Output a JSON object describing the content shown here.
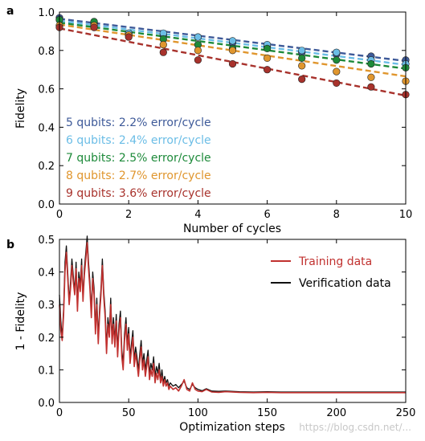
{
  "chart_data": [
    {
      "type": "scatter",
      "panel_label": "a",
      "xlabel": "Number of cycles",
      "ylabel": "Fidelity",
      "xlim": [
        0,
        10
      ],
      "ylim": [
        0,
        1.0
      ],
      "xticks": [
        0,
        2,
        4,
        6,
        8,
        10
      ],
      "yticks": [
        0.0,
        0.2,
        0.4,
        0.6,
        0.8,
        1.0
      ],
      "x": [
        0,
        1,
        2,
        3,
        4,
        5,
        6,
        7,
        8,
        9,
        10
      ],
      "grid": false,
      "legend": "bottom-left, text labels colored by series",
      "series": [
        {
          "name": "5 qubits: 2.2% error/cycle",
          "color": "#3e5a99",
          "values": [
            0.97,
            0.95,
            0.89,
            0.88,
            0.87,
            0.84,
            0.82,
            0.79,
            0.78,
            0.77,
            0.75
          ],
          "fit": [
            0.965,
            0.745
          ]
        },
        {
          "name": "6 qubits: 2.4% error/cycle",
          "color": "#6bbde6",
          "values": [
            0.96,
            0.94,
            0.89,
            0.89,
            0.87,
            0.85,
            0.83,
            0.8,
            0.79,
            0.75,
            0.73
          ],
          "fit": [
            0.955,
            0.725
          ]
        },
        {
          "name": "7 qubits: 2.5% error/cycle",
          "color": "#1d8a3a",
          "values": [
            0.96,
            0.95,
            0.88,
            0.86,
            0.83,
            0.81,
            0.81,
            0.76,
            0.75,
            0.73,
            0.71
          ],
          "fit": [
            0.945,
            0.705
          ]
        },
        {
          "name": "8 qubits: 2.7% error/cycle",
          "color": "#e0962e",
          "values": [
            0.93,
            0.93,
            0.88,
            0.83,
            0.8,
            0.8,
            0.76,
            0.72,
            0.69,
            0.66,
            0.64
          ],
          "fit": [
            0.935,
            0.665
          ]
        },
        {
          "name": "9 qubits: 3.6% error/cycle",
          "color": "#a8322c",
          "values": [
            0.92,
            0.92,
            0.87,
            0.79,
            0.75,
            0.73,
            0.7,
            0.65,
            0.63,
            0.61,
            0.57
          ],
          "fit": [
            0.915,
            0.565
          ]
        }
      ]
    },
    {
      "type": "line",
      "panel_label": "b",
      "xlabel": "Optimization steps",
      "ylabel": "1 - Fidelity",
      "xlim": [
        0,
        250
      ],
      "ylim": [
        0,
        0.5
      ],
      "xticks": [
        0,
        50,
        100,
        150,
        200,
        250
      ],
      "yticks": [
        0.0,
        0.1,
        0.2,
        0.3,
        0.4,
        0.5
      ],
      "grid": false,
      "legend": "top-right",
      "series": [
        {
          "name": "Training data",
          "color": "#c1312f",
          "points": [
            [
              0,
              0.3
            ],
            [
              1,
              0.22
            ],
            [
              2,
              0.19
            ],
            [
              3,
              0.27
            ],
            [
              4,
              0.4
            ],
            [
              5,
              0.46
            ],
            [
              6,
              0.38
            ],
            [
              7,
              0.3
            ],
            [
              8,
              0.35
            ],
            [
              9,
              0.42
            ],
            [
              10,
              0.37
            ],
            [
              11,
              0.33
            ],
            [
              12,
              0.41
            ],
            [
              13,
              0.28
            ],
            [
              14,
              0.38
            ],
            [
              15,
              0.34
            ],
            [
              16,
              0.42
            ],
            [
              17,
              0.31
            ],
            [
              18,
              0.39
            ],
            [
              19,
              0.44
            ],
            [
              20,
              0.49
            ],
            [
              21,
              0.41
            ],
            [
              22,
              0.35
            ],
            [
              23,
              0.26
            ],
            [
              24,
              0.38
            ],
            [
              25,
              0.33
            ],
            [
              26,
              0.21
            ],
            [
              27,
              0.3
            ],
            [
              28,
              0.18
            ],
            [
              29,
              0.27
            ],
            [
              30,
              0.33
            ],
            [
              31,
              0.42
            ],
            [
              32,
              0.32
            ],
            [
              33,
              0.26
            ],
            [
              34,
              0.15
            ],
            [
              35,
              0.24
            ],
            [
              36,
              0.2
            ],
            [
              37,
              0.3
            ],
            [
              38,
              0.18
            ],
            [
              39,
              0.24
            ],
            [
              40,
              0.17
            ],
            [
              41,
              0.25
            ],
            [
              42,
              0.14
            ],
            [
              43,
              0.22
            ],
            [
              44,
              0.26
            ],
            [
              45,
              0.14
            ],
            [
              46,
              0.1
            ],
            [
              47,
              0.19
            ],
            [
              48,
              0.24
            ],
            [
              49,
              0.16
            ],
            [
              50,
              0.21
            ],
            [
              51,
              0.12
            ],
            [
              52,
              0.16
            ],
            [
              53,
              0.2
            ],
            [
              54,
              0.11
            ],
            [
              55,
              0.15
            ],
            [
              56,
              0.12
            ],
            [
              57,
              0.08
            ],
            [
              58,
              0.13
            ],
            [
              59,
              0.17
            ],
            [
              60,
              0.1
            ],
            [
              61,
              0.13
            ],
            [
              62,
              0.08
            ],
            [
              63,
              0.11
            ],
            [
              64,
              0.14
            ],
            [
              65,
              0.07
            ],
            [
              66,
              0.1
            ],
            [
              67,
              0.08
            ],
            [
              68,
              0.12
            ],
            [
              69,
              0.06
            ],
            [
              70,
              0.09
            ],
            [
              71,
              0.07
            ],
            [
              72,
              0.1
            ],
            [
              73,
              0.06
            ],
            [
              74,
              0.08
            ],
            [
              75,
              0.05
            ],
            [
              76,
              0.07
            ],
            [
              77,
              0.05
            ],
            [
              78,
              0.06
            ],
            [
              79,
              0.04
            ],
            [
              80,
              0.05
            ],
            [
              82,
              0.04
            ],
            [
              84,
              0.045
            ],
            [
              86,
              0.035
            ],
            [
              88,
              0.05
            ],
            [
              90,
              0.07
            ],
            [
              92,
              0.04
            ],
            [
              94,
              0.035
            ],
            [
              96,
              0.06
            ],
            [
              98,
              0.04
            ],
            [
              100,
              0.035
            ],
            [
              103,
              0.033
            ],
            [
              106,
              0.04
            ],
            [
              110,
              0.032
            ],
            [
              115,
              0.031
            ],
            [
              120,
              0.033
            ],
            [
              130,
              0.031
            ],
            [
              140,
              0.03
            ],
            [
              150,
              0.031
            ],
            [
              160,
              0.03
            ],
            [
              170,
              0.03
            ],
            [
              180,
              0.03
            ],
            [
              190,
              0.03
            ],
            [
              200,
              0.03
            ],
            [
              210,
              0.03
            ],
            [
              220,
              0.03
            ],
            [
              230,
              0.03
            ],
            [
              240,
              0.03
            ],
            [
              250,
              0.03
            ]
          ]
        },
        {
          "name": "Verification data",
          "color": "#111111",
          "points": [
            [
              0,
              0.33
            ],
            [
              1,
              0.25
            ],
            [
              2,
              0.2
            ],
            [
              3,
              0.29
            ],
            [
              4,
              0.43
            ],
            [
              5,
              0.48
            ],
            [
              6,
              0.4
            ],
            [
              7,
              0.31
            ],
            [
              8,
              0.37
            ],
            [
              9,
              0.44
            ],
            [
              10,
              0.39
            ],
            [
              11,
              0.34
            ],
            [
              12,
              0.43
            ],
            [
              13,
              0.3
            ],
            [
              14,
              0.4
            ],
            [
              15,
              0.36
            ],
            [
              16,
              0.44
            ],
            [
              17,
              0.32
            ],
            [
              18,
              0.41
            ],
            [
              19,
              0.46
            ],
            [
              20,
              0.51
            ],
            [
              21,
              0.43
            ],
            [
              22,
              0.37
            ],
            [
              23,
              0.28
            ],
            [
              24,
              0.4
            ],
            [
              25,
              0.35
            ],
            [
              26,
              0.23
            ],
            [
              27,
              0.32
            ],
            [
              28,
              0.2
            ],
            [
              29,
              0.29
            ],
            [
              30,
              0.35
            ],
            [
              31,
              0.44
            ],
            [
              32,
              0.34
            ],
            [
              33,
              0.28
            ],
            [
              34,
              0.17
            ],
            [
              35,
              0.26
            ],
            [
              36,
              0.22
            ],
            [
              37,
              0.32
            ],
            [
              38,
              0.2
            ],
            [
              39,
              0.26
            ],
            [
              40,
              0.19
            ],
            [
              41,
              0.27
            ],
            [
              42,
              0.16
            ],
            [
              43,
              0.24
            ],
            [
              44,
              0.28
            ],
            [
              45,
              0.16
            ],
            [
              46,
              0.12
            ],
            [
              47,
              0.21
            ],
            [
              48,
              0.26
            ],
            [
              49,
              0.18
            ],
            [
              50,
              0.23
            ],
            [
              51,
              0.14
            ],
            [
              52,
              0.18
            ],
            [
              53,
              0.22
            ],
            [
              54,
              0.13
            ],
            [
              55,
              0.17
            ],
            [
              56,
              0.14
            ],
            [
              57,
              0.1
            ],
            [
              58,
              0.15
            ],
            [
              59,
              0.19
            ],
            [
              60,
              0.12
            ],
            [
              61,
              0.15
            ],
            [
              62,
              0.1
            ],
            [
              63,
              0.13
            ],
            [
              64,
              0.16
            ],
            [
              65,
              0.09
            ],
            [
              66,
              0.12
            ],
            [
              67,
              0.1
            ],
            [
              68,
              0.14
            ],
            [
              69,
              0.08
            ],
            [
              70,
              0.11
            ],
            [
              71,
              0.09
            ],
            [
              72,
              0.12
            ],
            [
              73,
              0.07
            ],
            [
              74,
              0.1
            ],
            [
              75,
              0.06
            ],
            [
              76,
              0.08
            ],
            [
              77,
              0.06
            ],
            [
              78,
              0.07
            ],
            [
              79,
              0.05
            ],
            [
              80,
              0.06
            ],
            [
              82,
              0.05
            ],
            [
              84,
              0.055
            ],
            [
              86,
              0.045
            ],
            [
              88,
              0.055
            ],
            [
              90,
              0.065
            ],
            [
              92,
              0.045
            ],
            [
              94,
              0.04
            ],
            [
              96,
              0.055
            ],
            [
              98,
              0.045
            ],
            [
              100,
              0.04
            ],
            [
              103,
              0.036
            ],
            [
              106,
              0.042
            ],
            [
              110,
              0.035
            ],
            [
              115,
              0.034
            ],
            [
              120,
              0.035
            ],
            [
              130,
              0.033
            ],
            [
              140,
              0.032
            ],
            [
              150,
              0.033
            ],
            [
              160,
              0.032
            ],
            [
              170,
              0.032
            ],
            [
              180,
              0.032
            ],
            [
              190,
              0.032
            ],
            [
              200,
              0.032
            ],
            [
              210,
              0.032
            ],
            [
              220,
              0.032
            ],
            [
              230,
              0.032
            ],
            [
              240,
              0.032
            ],
            [
              250,
              0.032
            ]
          ]
        }
      ]
    }
  ],
  "watermark": "https://blog.csdn.net/..."
}
